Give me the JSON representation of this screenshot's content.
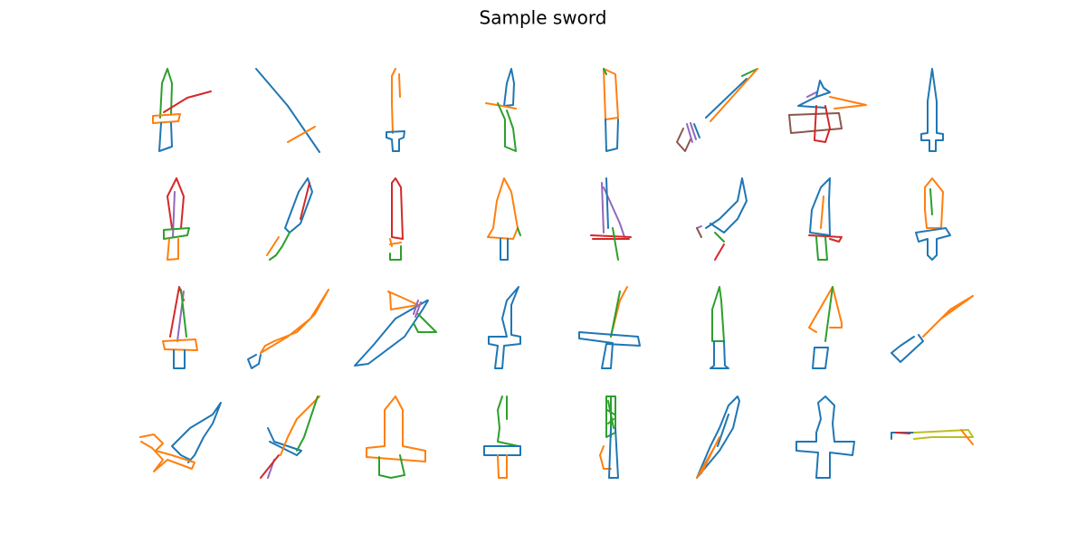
{
  "title": "Sample sword"
}
